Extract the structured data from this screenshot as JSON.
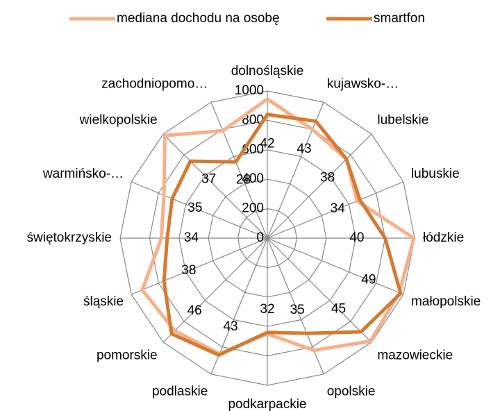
{
  "chart_data": {
    "type": "radar",
    "categories": [
      "dolnośląskie",
      "kujawsko-…",
      "lubelskie",
      "lubuskie",
      "łódzkie",
      "małopolskie",
      "mazowieckie",
      "opolskie",
      "podkarpackie",
      "podlaskie",
      "pomorskie",
      "śląskie",
      "świętokrzyskie",
      "warmińsko-…",
      "wielkopolskie",
      "zachodniopomo…"
    ],
    "series": [
      {
        "name": "mediana dochodu na osobę",
        "color": "#f7b08a",
        "values": [
          945,
          800,
          760,
          660,
          995,
          970,
          990,
          825,
          650,
          850,
          890,
          920,
          720,
          760,
          985,
          790
        ]
      },
      {
        "name": "smartfon",
        "color": "#d57a32",
        "axis": "y2",
        "values": [
          42,
          43,
          38,
          34,
          40,
          49,
          45,
          35,
          32,
          43,
          46,
          38,
          34,
          35,
          37,
          28
        ]
      }
    ],
    "ylim": [
      0,
      1000
    ],
    "yticks": [
      0,
      200,
      400,
      600,
      800,
      1000
    ],
    "y2lim": [
      0,
      50
    ],
    "grid": true,
    "legend": "top"
  }
}
